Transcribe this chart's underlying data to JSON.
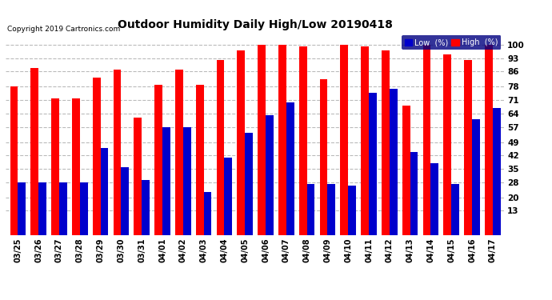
{
  "title": "Outdoor Humidity Daily High/Low 20190418",
  "copyright": "Copyright 2019 Cartronics.com",
  "categories": [
    "03/25",
    "03/26",
    "03/27",
    "03/28",
    "03/29",
    "03/30",
    "03/31",
    "04/01",
    "04/02",
    "04/03",
    "04/04",
    "04/05",
    "04/06",
    "04/07",
    "04/08",
    "04/09",
    "04/10",
    "04/11",
    "04/12",
    "04/13",
    "04/14",
    "04/15",
    "04/16",
    "04/17"
  ],
  "high_values": [
    78,
    88,
    72,
    72,
    83,
    87,
    62,
    79,
    87,
    79,
    92,
    97,
    100,
    100,
    99,
    82,
    100,
    99,
    97,
    68,
    100,
    95,
    92,
    100
  ],
  "low_values": [
    28,
    28,
    28,
    28,
    46,
    36,
    29,
    57,
    57,
    23,
    41,
    54,
    63,
    70,
    27,
    27,
    26,
    75,
    77,
    44,
    38,
    27,
    61,
    67
  ],
  "high_color": "#ff0000",
  "low_color": "#0000cc",
  "background_color": "#ffffff",
  "grid_color": "#bbbbbb",
  "yticks": [
    13,
    20,
    28,
    35,
    42,
    49,
    57,
    64,
    71,
    78,
    86,
    93,
    100
  ],
  "ylim": [
    0,
    107
  ],
  "bar_width": 0.38,
  "legend_low_label": "Low  (%)",
  "legend_high_label": "High  (%)"
}
